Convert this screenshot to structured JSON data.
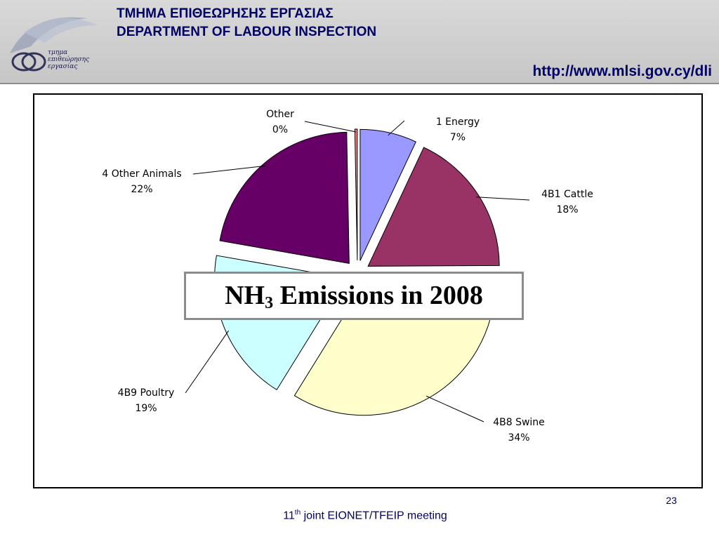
{
  "header": {
    "title_greek": "ΤΜΗΜΑ ΕΠΙΘΕΩΡΗΣΗΣ ΕΡΓΑΣΙΑΣ",
    "title_english": "DEPARTMENT OF LABOUR INSPECTION",
    "url": "http://www.mlsi.gov.cy/dli",
    "logo_lines": [
      "τμημα",
      "επιθεώρησης",
      "εργασίας"
    ]
  },
  "chart_data": {
    "type": "pie",
    "title_main": "NH",
    "title_sub": "3",
    "title_rest": " Emissions in 2008",
    "slices": [
      {
        "name": "1 Energy",
        "label": "7%",
        "value": 7,
        "color": "#9999ff"
      },
      {
        "name": "4B1 Cattle",
        "label": "18%",
        "value": 18,
        "color": "#993366"
      },
      {
        "name": "4B8 Swine",
        "label": "34%",
        "value": 34,
        "color": "#ffffcc"
      },
      {
        "name": "4B9 Poultry",
        "label": "19%",
        "value": 19,
        "color": "#ccffff"
      },
      {
        "name": "4 Other Animals",
        "label": "22%",
        "value": 22,
        "color": "#660066"
      },
      {
        "name": "Other",
        "label": "0%",
        "value": 0.3,
        "color": "#ff8080"
      }
    ]
  },
  "footer": {
    "meeting_prefix": "11",
    "meeting_sup": "th",
    "meeting_rest": " joint EIONET/TFEIP meeting",
    "page_number": "23"
  }
}
